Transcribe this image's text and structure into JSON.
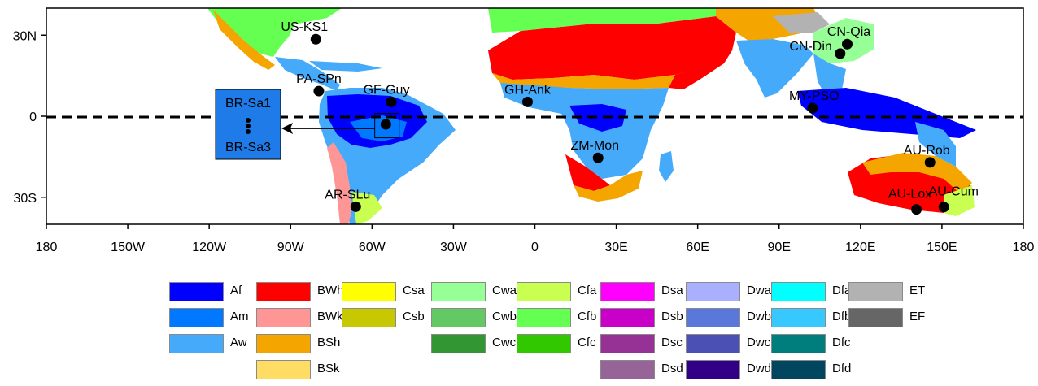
{
  "map": {
    "lon_ticks": [
      {
        "lon": -180,
        "label": "180"
      },
      {
        "lon": -150,
        "label": "150W"
      },
      {
        "lon": -120,
        "label": "120W"
      },
      {
        "lon": -90,
        "label": "90W"
      },
      {
        "lon": -60,
        "label": "60W"
      },
      {
        "lon": -30,
        "label": "30W"
      },
      {
        "lon": 0,
        "label": "0"
      },
      {
        "lon": 30,
        "label": "30E"
      },
      {
        "lon": 60,
        "label": "60E"
      },
      {
        "lon": 90,
        "label": "90E"
      },
      {
        "lon": 120,
        "label": "120E"
      },
      {
        "lon": 150,
        "label": "150E"
      },
      {
        "lon": 180,
        "label": "180"
      }
    ],
    "lat_ticks": [
      {
        "lat": 30,
        "label": "30N"
      },
      {
        "lat": 0,
        "label": "0"
      },
      {
        "lat": -30,
        "label": "30S"
      }
    ],
    "lat_range": [
      -40,
      40
    ],
    "lon_range": [
      -180,
      180
    ],
    "equator_line": "dashed",
    "sites": [
      {
        "name": "US-KS1",
        "lon": -80.7,
        "lat": 28.5
      },
      {
        "name": "PA-SPn",
        "lon": -79.6,
        "lat": 9.3
      },
      {
        "name": "GF-Guy",
        "lon": -52.9,
        "lat": 5.3
      },
      {
        "name": "GH-Ank",
        "lon": -2.7,
        "lat": 5.3
      },
      {
        "name": "ZM-Mon",
        "lon": 23.3,
        "lat": -15.4
      },
      {
        "name": "AR-SLu",
        "lon": -66.0,
        "lat": -33.5
      },
      {
        "name": "CN-Qia",
        "lon": 115.1,
        "lat": 26.7
      },
      {
        "name": "CN-Din",
        "lon": 112.5,
        "lat": 23.2
      },
      {
        "name": "MY-PSO",
        "lon": 102.3,
        "lat": 3.0
      },
      {
        "name": "AU-Rob",
        "lon": 145.6,
        "lat": -17.1
      },
      {
        "name": "AU-Lox",
        "lon": 140.6,
        "lat": -34.5
      },
      {
        "name": "AU-Cum",
        "lon": 150.7,
        "lat": -33.6
      }
    ],
    "inset": {
      "labels": [
        "BR-Sa1",
        "BR-Sa3"
      ],
      "color": "#1e7be8",
      "highlight_box_lon": [
        -59,
        -50
      ],
      "highlight_box_lat": [
        -8,
        1
      ]
    }
  },
  "legend": {
    "columns": [
      [
        {
          "code": "Af",
          "color": "#0000fe"
        },
        {
          "code": "Am",
          "color": "#0078ff"
        },
        {
          "code": "Aw",
          "color": "#46aafa"
        }
      ],
      [
        {
          "code": "BWh",
          "color": "#ff0000"
        },
        {
          "code": "BWk",
          "color": "#ff9696"
        },
        {
          "code": "BSh",
          "color": "#f5a500"
        },
        {
          "code": "BSk",
          "color": "#ffdc64"
        }
      ],
      [
        {
          "code": "Csa",
          "color": "#ffff00"
        },
        {
          "code": "Csb",
          "color": "#c8c800"
        }
      ],
      [
        {
          "code": "Cwa",
          "color": "#96ff96"
        },
        {
          "code": "Cwb",
          "color": "#64c864"
        },
        {
          "code": "Cwc",
          "color": "#329632"
        }
      ],
      [
        {
          "code": "Cfa",
          "color": "#c8ff50"
        },
        {
          "code": "Cfb",
          "color": "#64ff50"
        },
        {
          "code": "Cfc",
          "color": "#32c800"
        }
      ],
      [
        {
          "code": "Dsa",
          "color": "#ff00ff"
        },
        {
          "code": "Dsb",
          "color": "#c800c8"
        },
        {
          "code": "Dsc",
          "color": "#963296"
        },
        {
          "code": "Dsd",
          "color": "#966496"
        }
      ],
      [
        {
          "code": "Dwa",
          "color": "#aaafff"
        },
        {
          "code": "Dwb",
          "color": "#5a78dc"
        },
        {
          "code": "Dwc",
          "color": "#4b50b4"
        },
        {
          "code": "Dwd",
          "color": "#320087"
        }
      ],
      [
        {
          "code": "Dfa",
          "color": "#00ffff"
        },
        {
          "code": "Dfb",
          "color": "#37c8ff"
        },
        {
          "code": "Dfc",
          "color": "#007d7d"
        },
        {
          "code": "Dfd",
          "color": "#00465f"
        }
      ],
      [
        {
          "code": "ET",
          "color": "#b2b2b2"
        },
        {
          "code": "EF",
          "color": "#666666"
        }
      ]
    ]
  }
}
